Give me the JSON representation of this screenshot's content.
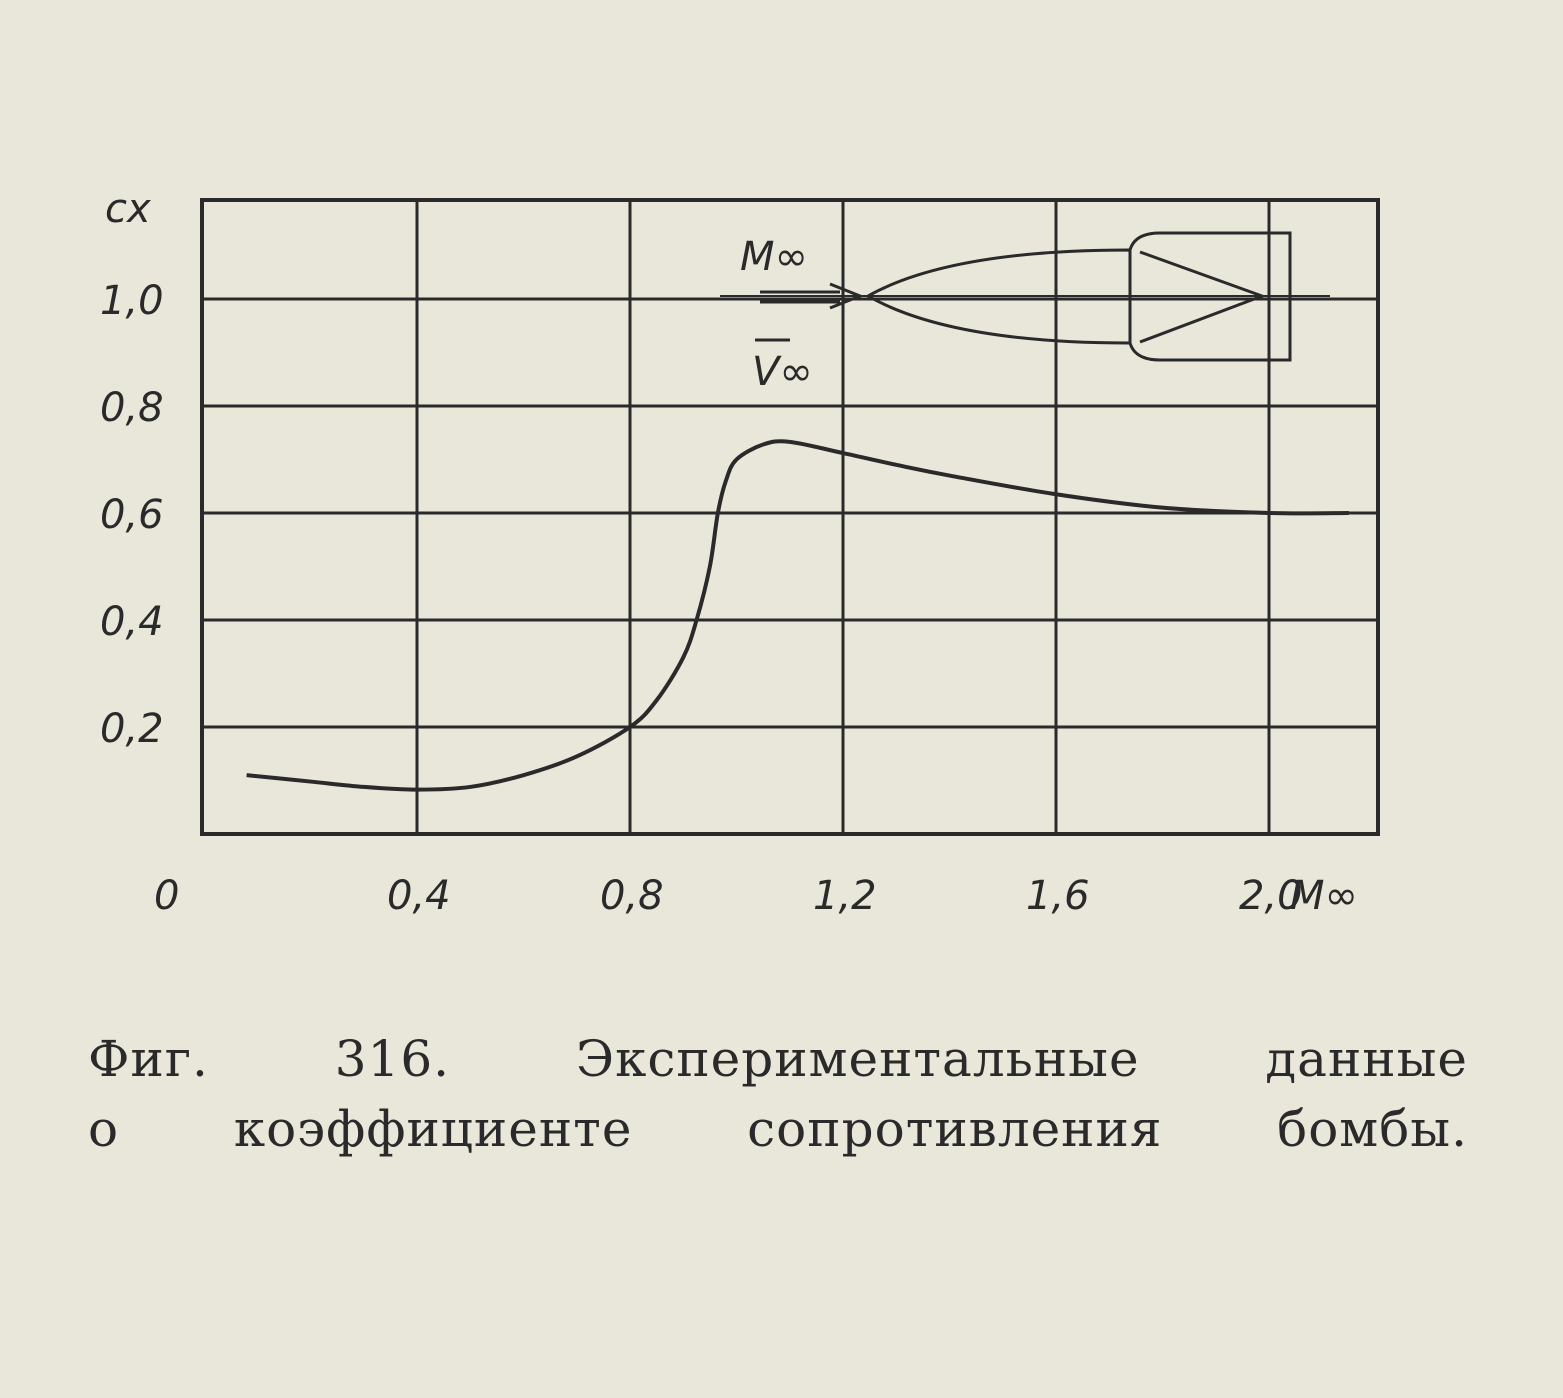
{
  "chart_data": {
    "type": "line",
    "title": "",
    "xlabel": "M∞",
    "ylabel": "c_x",
    "xlim": [
      0,
      2.2
    ],
    "ylim": [
      0,
      1.2
    ],
    "grid": true,
    "x_ticks": [
      0,
      0.4,
      0.8,
      1.2,
      1.6,
      2.0
    ],
    "x_tick_labels": [
      "0",
      "0,4",
      "0,8",
      "1,2",
      "1,6",
      "2,0"
    ],
    "y_ticks": [
      0.2,
      0.4,
      0.6,
      0.8,
      1.0
    ],
    "y_tick_labels": [
      "0,2",
      "0,4",
      "0,6",
      "0,8",
      "1,0"
    ],
    "series": [
      {
        "x": [
          0.08,
          0.2,
          0.3,
          0.4,
          0.5,
          0.6,
          0.7,
          0.8,
          0.85,
          0.9,
          0.925,
          0.95,
          0.965,
          0.98,
          1.0,
          1.05,
          1.1,
          1.2,
          1.3,
          1.4,
          1.6,
          1.8,
          2.0,
          2.15
        ],
        "y": [
          0.11,
          0.098,
          0.088,
          0.083,
          0.088,
          0.11,
          0.145,
          0.2,
          0.25,
          0.33,
          0.4,
          0.5,
          0.6,
          0.66,
          0.7,
          0.728,
          0.733,
          0.712,
          0.69,
          0.67,
          0.635,
          0.61,
          0.6,
          0.6
        ]
      }
    ],
    "annotations": {
      "flow_mach": "M∞",
      "flow_velocity": "V∞"
    }
  },
  "caption": {
    "line1": "Фиг.  316.  Экспериментальные  данные",
    "line2": "о  коэффициенте  сопротивления  бомбы."
  },
  "colors": {
    "ink": "#2a2a2a",
    "paper": "#e9e7da"
  }
}
